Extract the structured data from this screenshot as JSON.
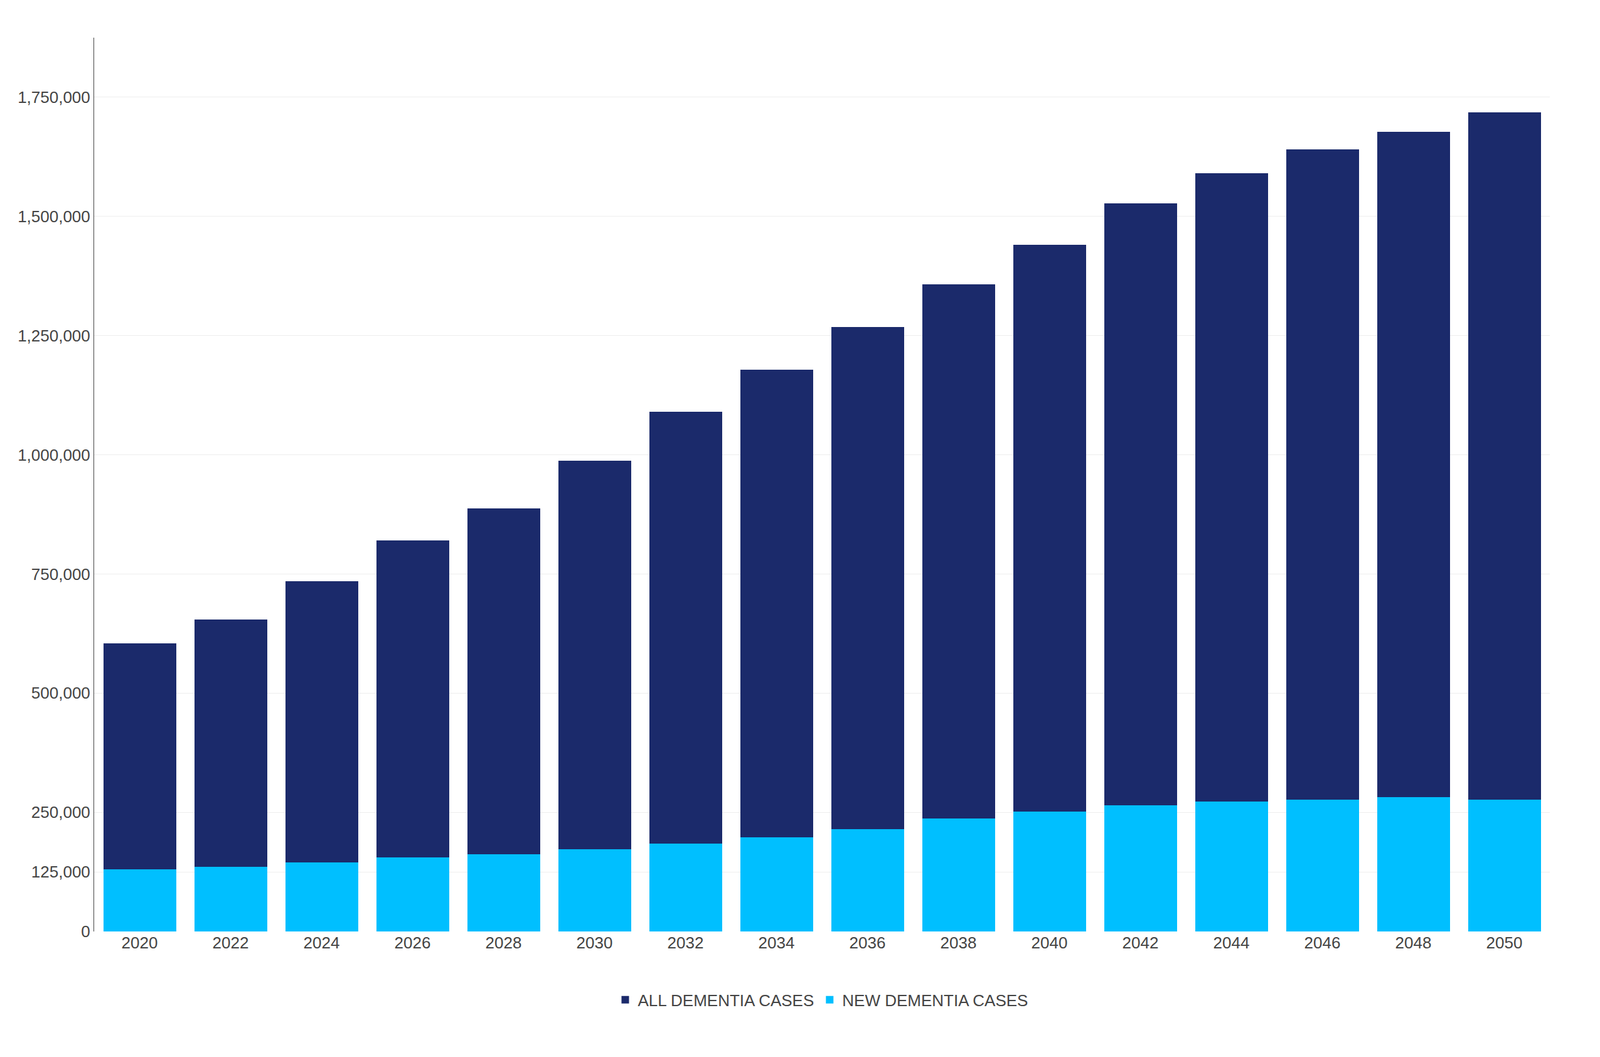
{
  "chart_data": {
    "type": "bar",
    "stacked": true,
    "categories": [
      "2020",
      "2022",
      "2024",
      "2026",
      "2028",
      "2030",
      "2032",
      "2034",
      "2036",
      "2038",
      "2040",
      "2042",
      "2044",
      "2046",
      "2048",
      "2050"
    ],
    "series": [
      {
        "name": "NEW DEMENTIA CASES",
        "color": "#00BFFF",
        "values": [
          130000,
          135000,
          145000,
          155000,
          162000,
          172000,
          185000,
          197000,
          215000,
          237000,
          252000,
          265000,
          272000,
          277000,
          282000,
          277000
        ]
      },
      {
        "name": "ALL DEMENTIA CASES",
        "color": "#1B2A6B",
        "values": [
          475000,
          520000,
          590000,
          665000,
          726000,
          816000,
          905000,
          981000,
          1053000,
          1121000,
          1188000,
          1263000,
          1318000,
          1363000,
          1396000,
          1441000
        ]
      }
    ],
    "ylim": [
      0,
      1875000
    ],
    "yticks": [
      0,
      {
        "value": 125000,
        "label": "125,000"
      },
      {
        "value": 250000,
        "label": "250,000"
      },
      {
        "value": 500000,
        "label": "500,000"
      },
      {
        "value": 750000,
        "label": "750,000"
      },
      {
        "value": 1000000,
        "label": "1,000,000"
      },
      {
        "value": 1250000,
        "label": "1,250,000"
      },
      {
        "value": 1500000,
        "label": "1,500,000"
      },
      {
        "value": 1750000,
        "label": "1,750,000"
      }
    ],
    "grid": true,
    "legend": "bottom"
  }
}
